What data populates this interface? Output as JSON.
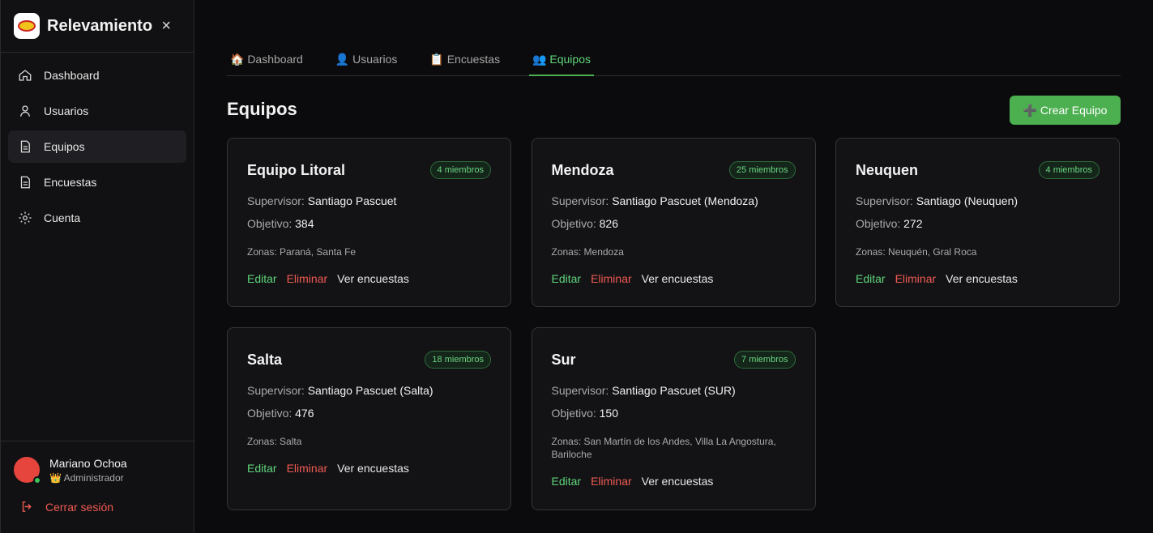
{
  "sidebar": {
    "brand": "Relevamiento",
    "nav": [
      "Dashboard",
      "Usuarios",
      "Equipos",
      "Encuestas",
      "Cuenta"
    ],
    "user": {
      "name": "Mariano Ochoa",
      "role": "👑 Administrador"
    },
    "logout": "Cerrar sesión"
  },
  "tabs": [
    "🏠 Dashboard",
    "👤 Usuarios",
    "📋 Encuestas",
    "👥 Equipos"
  ],
  "header": {
    "title": "Equipos",
    "button": "➕ Crear Equipo"
  },
  "labels": {
    "supervisor": "Supervisor:",
    "objetivo": "Objetivo:",
    "zonas": "Zonas:",
    "edit": "Editar",
    "delete": "Eliminar",
    "view": "Ver encuestas"
  },
  "teams": [
    {
      "name": "Equipo Litoral",
      "members": "4 miembros",
      "supervisor": "Santiago Pascuet",
      "objetivo": 384,
      "zonas": "Paraná, Santa Fe"
    },
    {
      "name": "Mendoza",
      "members": "25 miembros",
      "supervisor": "Santiago Pascuet (Mendoza)",
      "objetivo": 826,
      "zonas": "Mendoza"
    },
    {
      "name": "Neuquen",
      "members": "4 miembros",
      "supervisor": "Santiago (Neuquen)",
      "objetivo": 272,
      "zonas": "Neuquén, Gral Roca"
    },
    {
      "name": "Salta",
      "members": "18 miembros",
      "supervisor": "Santiago Pascuet (Salta)",
      "objetivo": 476,
      "zonas": "Salta"
    },
    {
      "name": "Sur",
      "members": "7 miembros",
      "supervisor": "Santiago Pascuet (SUR)",
      "objetivo": 150,
      "zonas": "San Martín de los Andes, Villa La Angostura, Bariloche"
    }
  ]
}
